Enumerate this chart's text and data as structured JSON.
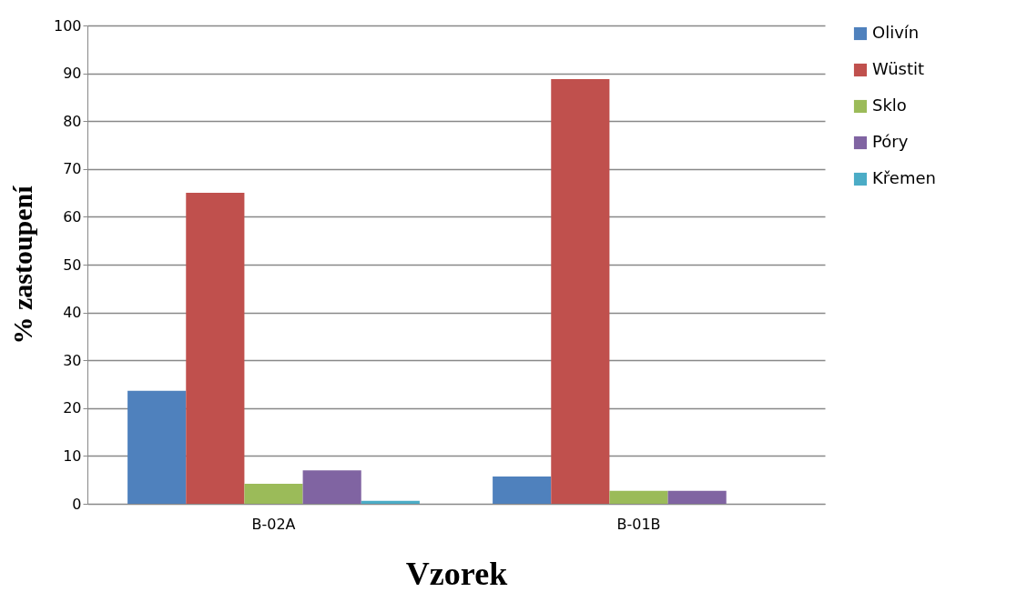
{
  "chart_data": {
    "type": "bar",
    "xlabel": "Vzorek",
    "ylabel": "% zastoupení",
    "categories": [
      "B-02A",
      "B-01B"
    ],
    "series": [
      {
        "name": "Olivín",
        "color": "#4f81bd",
        "values": [
          23.6,
          5.7
        ]
      },
      {
        "name": "Wüstit",
        "color": "#c0504d",
        "values": [
          65,
          88.8
        ]
      },
      {
        "name": "Sklo",
        "color": "#9bbb59",
        "values": [
          4.2,
          2.7
        ]
      },
      {
        "name": "Póry",
        "color": "#8064a2",
        "values": [
          7,
          2.7
        ]
      },
      {
        "name": "Křemen",
        "color": "#4bacc6",
        "values": [
          0.6,
          0
        ]
      }
    ],
    "ylim": [
      0,
      100
    ],
    "yticks": [
      0,
      10,
      20,
      30,
      40,
      50,
      60,
      70,
      80,
      90,
      100
    ],
    "grid": "y",
    "legend": "right"
  }
}
